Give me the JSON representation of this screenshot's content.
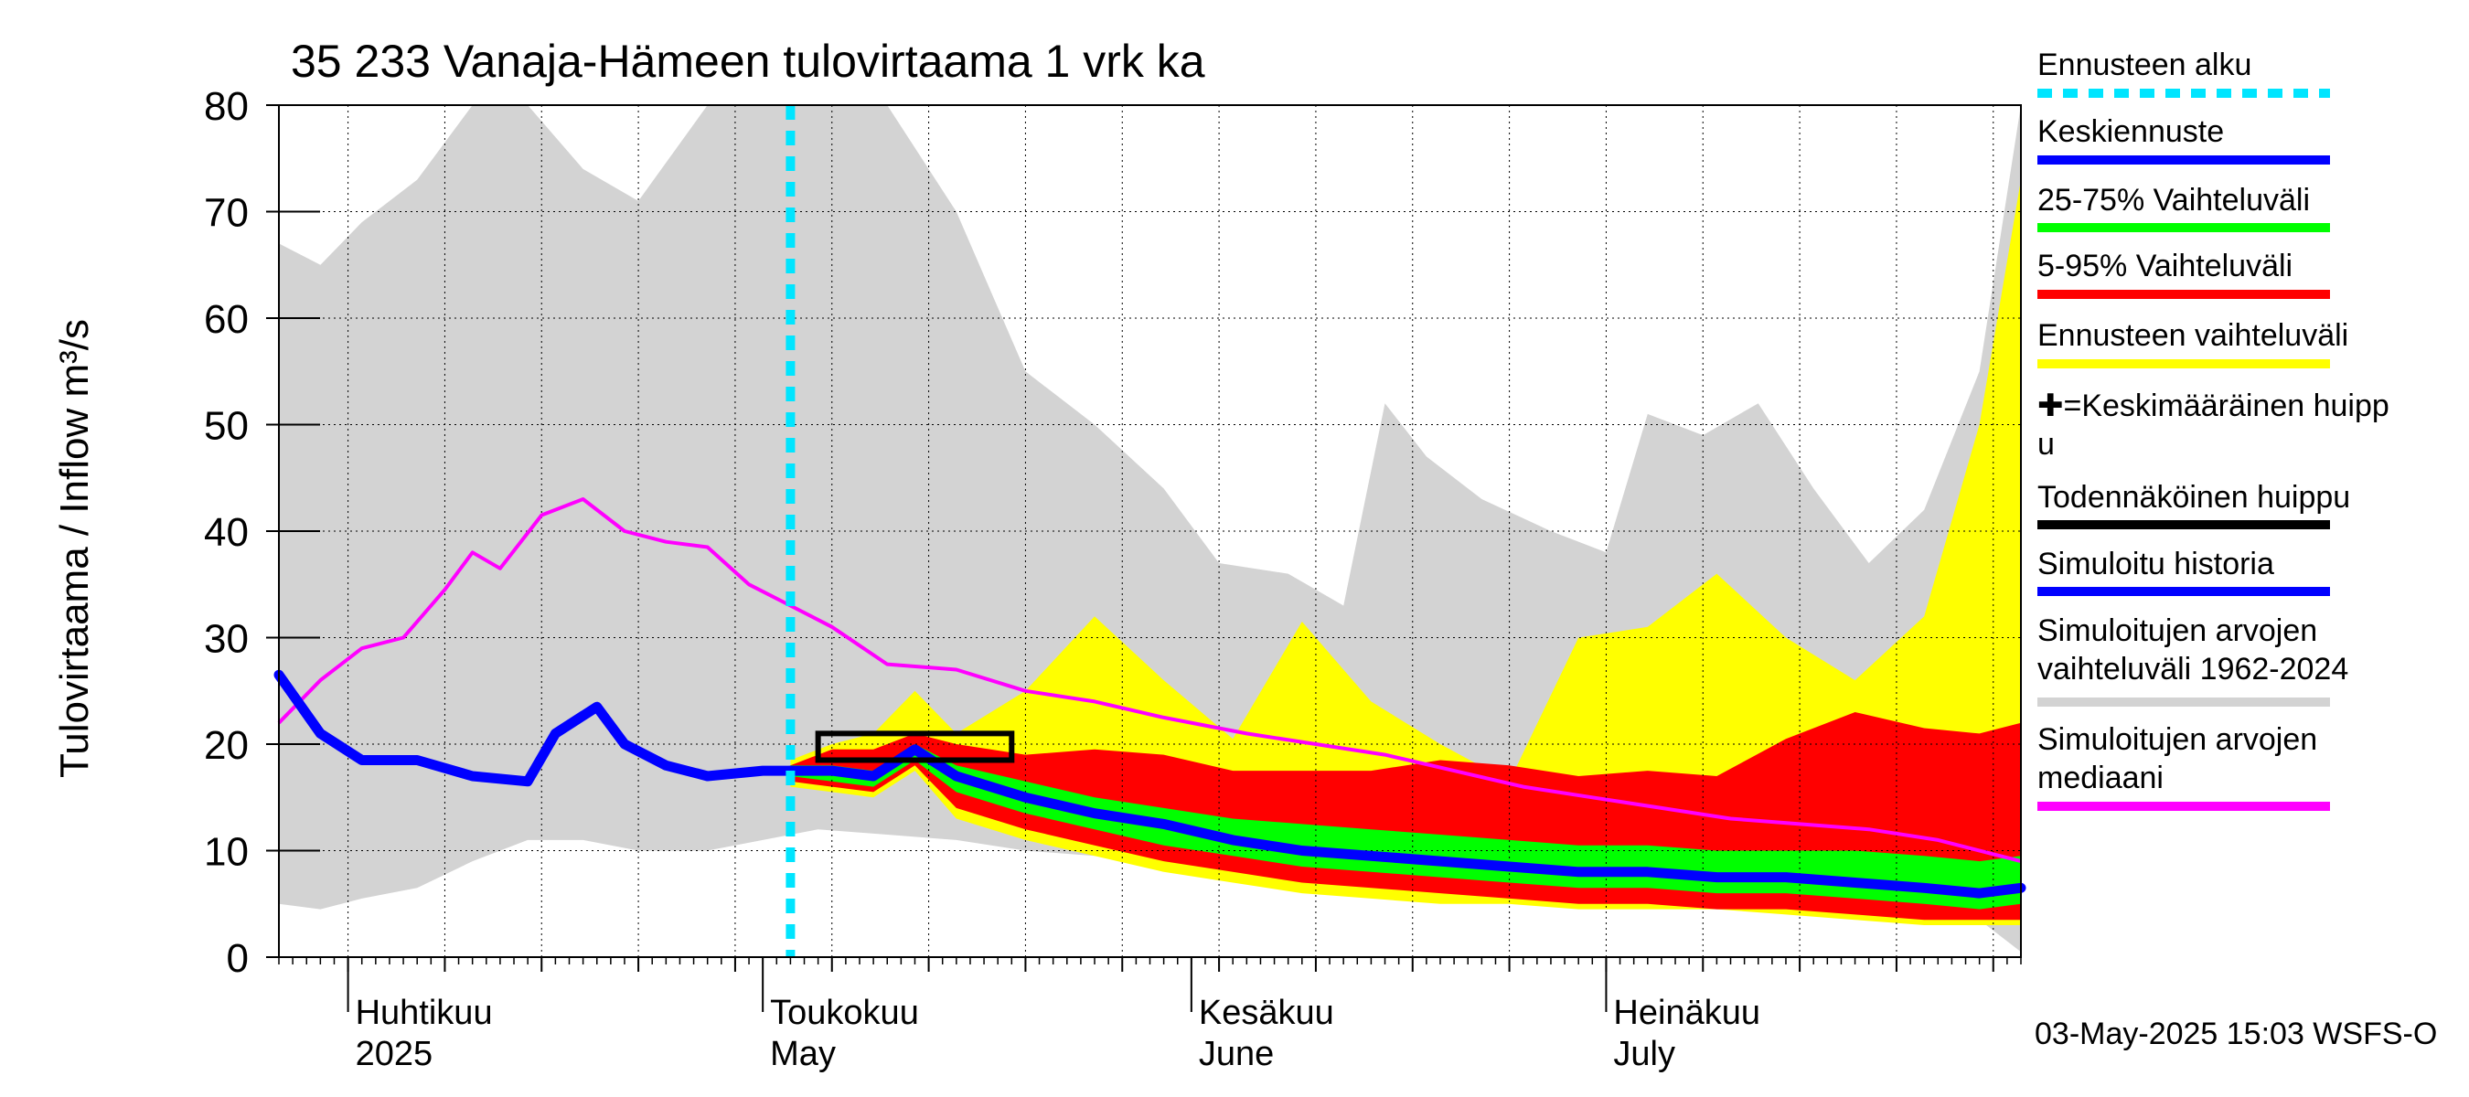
{
  "chart_data": {
    "type": "area",
    "title": "35 233 Vanaja-Hämeen tulovirtaama 1 vrk ka",
    "ylabel": "Tulovirtaama / Inflow    m³/s",
    "ylim": [
      0,
      80
    ],
    "y_ticks": [
      "0",
      "10",
      "20",
      "30",
      "40",
      "50",
      "60",
      "70",
      "80"
    ],
    "x_range": [
      "2025-03-27",
      "2025-07-31"
    ],
    "x_labels": [
      {
        "fi": "Huhtikuu",
        "en": "2025",
        "date": "2025-04-01"
      },
      {
        "fi": "Toukokuu",
        "en": "May",
        "date": "2025-05-01"
      },
      {
        "fi": "Kesäkuu",
        "en": "June",
        "date": "2025-06-01"
      },
      {
        "fi": "Heinäkuu",
        "en": "July",
        "date": "2025-07-01"
      }
    ],
    "grid": true,
    "legend_position": "right",
    "legend": [
      {
        "label": "Ennusteen alku",
        "color": "#00e5ff",
        "style": "dashed"
      },
      {
        "label": "Keskiennuste",
        "color": "#0000ff",
        "style": "solid"
      },
      {
        "label": "25-75% Vaihteluväli",
        "color": "#00ff00",
        "style": "solid"
      },
      {
        "label": "5-95% Vaihteluväli",
        "color": "#ff0000",
        "style": "solid"
      },
      {
        "label": "Ennusteen vaihteluväli",
        "color": "#ffff00",
        "style": "solid"
      },
      {
        "label": "✚=Keskimääräinen huipp\nu",
        "color": "",
        "style": "none"
      },
      {
        "label": "Todennäköinen huippu",
        "color": "#000000",
        "style": "solid"
      },
      {
        "label": "Simuloitu historia",
        "color": "#0000ff",
        "style": "solid"
      },
      {
        "label": "Simuloitujen arvojen\nvaihteluväli 1962-2024",
        "color": "#d3d3d3",
        "style": "solid"
      },
      {
        "label": "Simuloitujen arvojen\nmediaani",
        "color": "#ff00ff",
        "style": "solid"
      }
    ],
    "forecast_start": "2025-05-03",
    "peak_box": {
      "start": "2025-05-05",
      "end": "2025-05-19",
      "low": 18.5,
      "high": 21
    },
    "history_range": {
      "x": [
        "2025-03-27",
        "2025-03-30",
        "2025-04-02",
        "2025-04-06",
        "2025-04-10",
        "2025-04-14",
        "2025-04-18",
        "2025-04-22",
        "2025-04-27",
        "2025-05-01",
        "2025-05-05",
        "2025-05-10",
        "2025-05-15",
        "2025-05-20",
        "2025-05-25",
        "2025-05-30",
        "2025-06-03",
        "2025-06-08",
        "2025-06-12",
        "2025-06-15",
        "2025-06-18",
        "2025-06-22",
        "2025-06-27",
        "2025-07-01",
        "2025-07-04",
        "2025-07-08",
        "2025-07-12",
        "2025-07-16",
        "2025-07-20",
        "2025-07-24",
        "2025-07-28",
        "2025-07-31"
      ],
      "high": [
        67,
        65,
        69,
        73,
        80,
        80,
        74,
        71,
        80,
        80,
        80,
        80,
        70,
        55,
        50,
        44,
        37,
        36,
        33,
        52,
        47,
        43,
        40,
        38,
        51,
        49,
        52,
        44,
        37,
        42,
        55,
        80
      ],
      "low": [
        5,
        4.5,
        5.5,
        6.5,
        9,
        11,
        11,
        10,
        10,
        11,
        12,
        11.5,
        11,
        10,
        9.5,
        9,
        8.5,
        8,
        7.5,
        7,
        6.5,
        6,
        5.5,
        5,
        5,
        4.5,
        4.5,
        4.5,
        4,
        4,
        3.5,
        0.5
      ]
    },
    "median": {
      "x": [
        "2025-03-27",
        "2025-03-30",
        "2025-04-02",
        "2025-04-05",
        "2025-04-08",
        "2025-04-10",
        "2025-04-12",
        "2025-04-15",
        "2025-04-18",
        "2025-04-21",
        "2025-04-24",
        "2025-04-27",
        "2025-04-30",
        "2025-05-03",
        "2025-05-06",
        "2025-05-10",
        "2025-05-15",
        "2025-05-20",
        "2025-05-25",
        "2025-05-30",
        "2025-06-05",
        "2025-06-10",
        "2025-06-15",
        "2025-06-20",
        "2025-06-25",
        "2025-06-30",
        "2025-07-05",
        "2025-07-10",
        "2025-07-15",
        "2025-07-20",
        "2025-07-25",
        "2025-07-31"
      ],
      "values": [
        22,
        26,
        29,
        30,
        34.5,
        38,
        36.5,
        41.5,
        43,
        40,
        39,
        38.5,
        35,
        33,
        31,
        27.5,
        27,
        25,
        24,
        22.5,
        21,
        20,
        19,
        17.5,
        16,
        15,
        14,
        13,
        12.5,
        12,
        11,
        9
      ]
    },
    "simulated_history": {
      "x": [
        "2025-03-27",
        "2025-03-30",
        "2025-04-02",
        "2025-04-06",
        "2025-04-10",
        "2025-04-14",
        "2025-04-16",
        "2025-04-19",
        "2025-04-21",
        "2025-04-24",
        "2025-04-27",
        "2025-05-01",
        "2025-05-03"
      ],
      "values": [
        26.5,
        21,
        18.5,
        18.5,
        17,
        16.5,
        21,
        23.5,
        20,
        18,
        17,
        17.5,
        17.5
      ]
    },
    "forecast": {
      "x": [
        "2025-05-03",
        "2025-05-06",
        "2025-05-09",
        "2025-05-12",
        "2025-05-15",
        "2025-05-20",
        "2025-05-25",
        "2025-05-30",
        "2025-06-04",
        "2025-06-09",
        "2025-06-14",
        "2025-06-19",
        "2025-06-24",
        "2025-06-29",
        "2025-07-04",
        "2025-07-09",
        "2025-07-14",
        "2025-07-19",
        "2025-07-24",
        "2025-07-28",
        "2025-07-31"
      ],
      "mean": [
        17.5,
        17.5,
        17,
        19.5,
        17,
        15,
        13.5,
        12.5,
        11,
        10,
        9.5,
        9,
        8.5,
        8,
        8,
        7.5,
        7.5,
        7,
        6.5,
        6,
        6.5
      ],
      "p25": [
        17,
        16.5,
        16,
        18.5,
        15.5,
        13.5,
        12,
        10.5,
        9.5,
        8.5,
        8,
        7.5,
        7,
        6.5,
        6.5,
        6,
        6,
        5.5,
        5,
        4.5,
        5
      ],
      "p75": [
        18,
        18,
        17.5,
        20,
        18,
        16.5,
        15,
        14,
        13,
        12.5,
        12,
        11.5,
        11,
        10.5,
        10.5,
        10,
        10,
        10,
        9.5,
        9,
        9.5
      ],
      "p05": [
        16.5,
        16,
        15.5,
        18,
        14,
        12,
        10.5,
        9,
        8,
        7,
        6.5,
        6,
        5.5,
        5,
        5,
        4.5,
        4.5,
        4,
        3.5,
        3.5,
        3.5
      ],
      "p95": [
        18,
        19.5,
        19.5,
        21,
        20,
        19,
        19.5,
        19,
        17.5,
        17.5,
        17.5,
        18.5,
        18,
        17,
        17.5,
        17,
        20.5,
        23,
        21.5,
        21,
        22
      ],
      "min": [
        16,
        15.5,
        15,
        17.5,
        13,
        11,
        9.5,
        8,
        7,
        6,
        5.5,
        5,
        5,
        4.5,
        4.5,
        4.5,
        4,
        3.5,
        3,
        3,
        3
      ],
      "max": [
        18.5,
        20,
        21,
        25,
        21,
        25,
        32,
        26,
        20.5,
        31.5,
        24,
        20,
        16.5,
        30,
        31,
        36,
        30,
        26,
        32,
        50,
        73
      ]
    }
  },
  "timestamp": "03-May-2025 15:03 WSFS-O"
}
